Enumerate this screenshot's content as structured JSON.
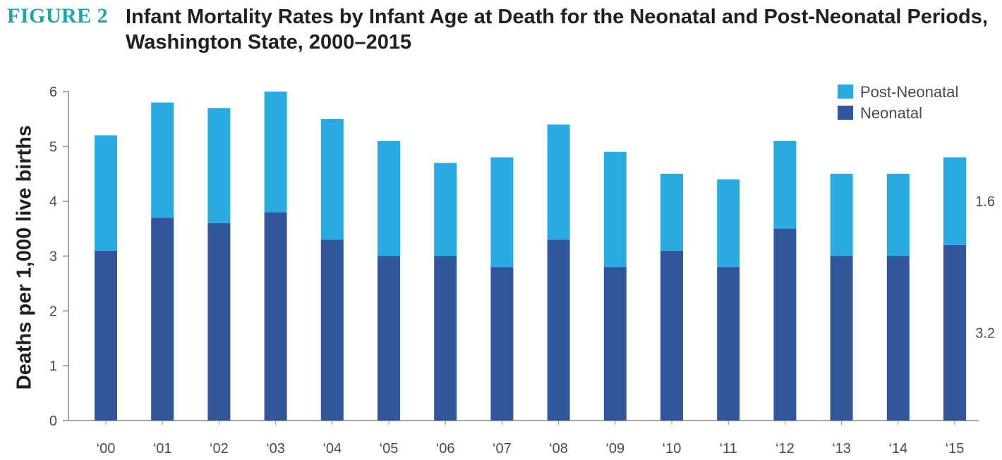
{
  "figure_label": "FIGURE 2",
  "title": "Infant Mortality Rates by Infant Age at Death for the Neonatal and Post-Neonatal Periods, Washington State, 2000–2015",
  "colors": {
    "neonatal": "#31569b",
    "post_neonatal": "#29abe2",
    "axis": "#888888"
  },
  "chart_data": {
    "type": "bar",
    "stacked": true,
    "categories": [
      "‘00",
      "‘01",
      "‘02",
      "‘03",
      "‘04",
      "‘05",
      "‘06",
      "‘07",
      "‘08",
      "‘09",
      "‘10",
      "‘11",
      "‘12",
      "‘13",
      "‘14",
      "‘15"
    ],
    "series": [
      {
        "name": "Neonatal",
        "values": [
          3.1,
          3.7,
          3.6,
          3.8,
          3.3,
          3.0,
          3.0,
          2.8,
          3.3,
          2.8,
          3.1,
          2.8,
          3.5,
          3.0,
          3.0,
          3.2
        ]
      },
      {
        "name": "Post-Neonatal",
        "values": [
          2.1,
          2.1,
          2.1,
          2.2,
          2.2,
          2.1,
          1.7,
          2.0,
          2.1,
          2.1,
          1.4,
          1.6,
          1.6,
          1.5,
          1.5,
          1.6
        ]
      }
    ],
    "ylabel": "Deaths per 1,000 live births",
    "xlabel": "",
    "ylim": [
      0,
      6
    ],
    "yticks": [
      "0",
      "1",
      "2",
      "3",
      "4",
      "5",
      "6"
    ],
    "legend": [
      "Post-Neonatal",
      "Neonatal"
    ],
    "legend_position": "top-right",
    "end_labels": {
      "post_neonatal": "1.6",
      "neonatal": "3.2"
    },
    "grid": false
  }
}
